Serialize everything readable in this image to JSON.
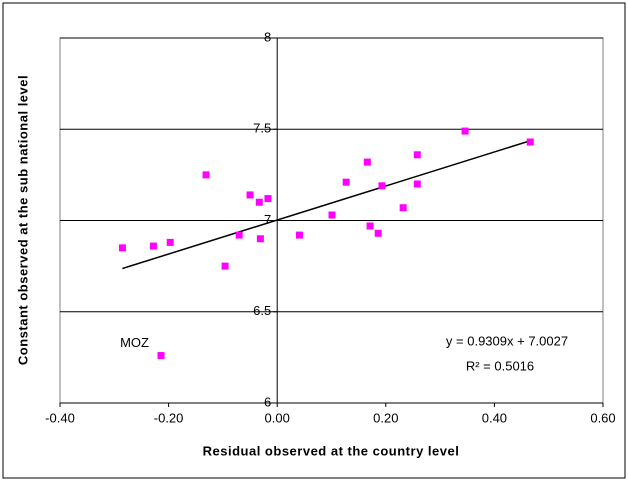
{
  "chart_data": {
    "type": "scatter",
    "xlabel": "Residual observed at the country level",
    "ylabel": "Constant observed at the sub national level",
    "x": [
      -0.285,
      -0.228,
      -0.197,
      -0.131,
      -0.096,
      -0.07,
      -0.05,
      -0.033,
      -0.031,
      -0.017,
      0.041,
      0.101,
      0.127,
      0.166,
      0.171,
      0.186,
      0.193,
      0.232,
      0.258,
      0.258,
      0.346,
      0.466,
      -0.214
    ],
    "values": [
      6.85,
      6.86,
      6.88,
      7.25,
      6.75,
      6.92,
      7.14,
      7.1,
      6.9,
      7.12,
      6.92,
      7.03,
      7.21,
      7.32,
      6.97,
      6.93,
      7.19,
      7.07,
      7.36,
      7.2,
      7.49,
      7.43,
      6.26
    ],
    "color": "#ff00ff",
    "trendline": {
      "x": [
        -0.285,
        0.466
      ],
      "values": [
        6.737,
        7.437
      ],
      "color": "#000000"
    },
    "annotations": [
      "MOZ",
      "y = 0.9309x + 7.0027",
      "R² = 0.5016"
    ],
    "xlim": [
      -0.4,
      0.6
    ],
    "ylim": [
      6,
      8
    ],
    "xticks": [
      {
        "value": -0.4,
        "label": "-0.40"
      },
      {
        "value": -0.2,
        "label": "-0.20"
      },
      {
        "value": 0,
        "label": "0.00"
      },
      {
        "value": 0.2,
        "label": "0.20"
      },
      {
        "value": 0.4,
        "label": "0.40"
      },
      {
        "value": 0.6,
        "label": "0.60"
      }
    ],
    "yticks": [
      6,
      6.5,
      7,
      7.5,
      8
    ],
    "grid": true
  }
}
